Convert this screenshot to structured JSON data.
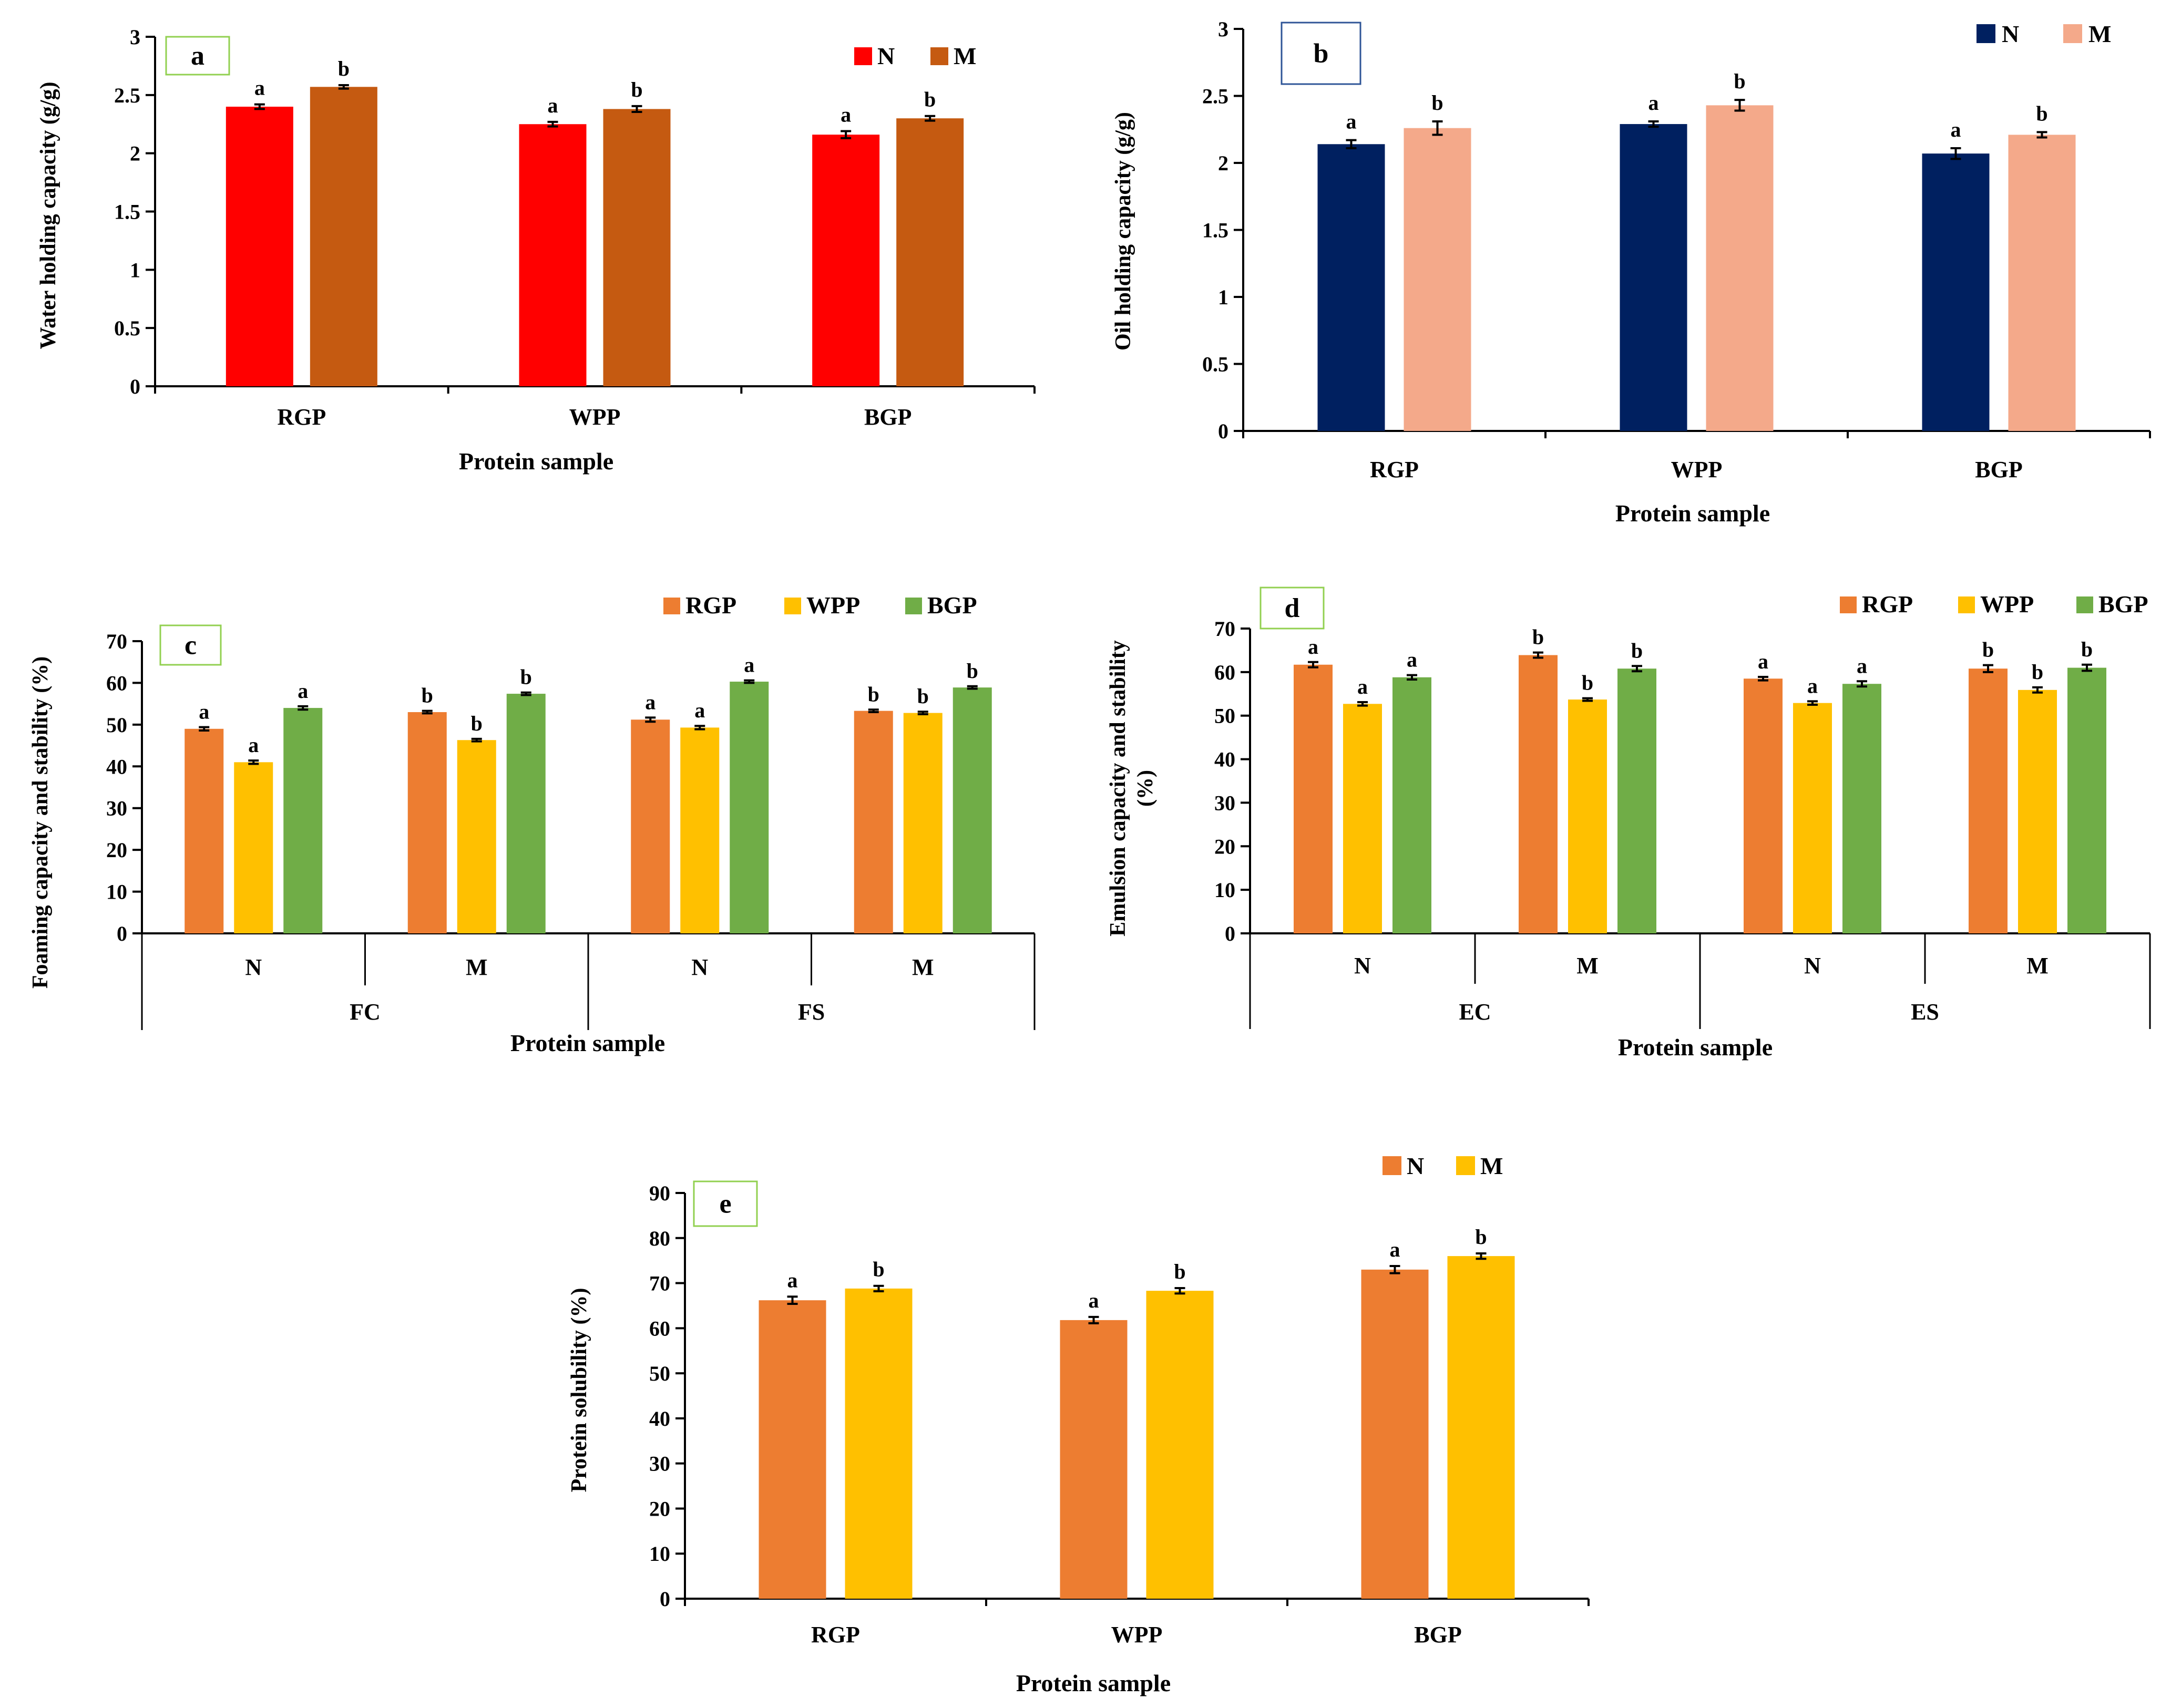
{
  "chart_data": [
    {
      "type": "bar",
      "panel_label": "a",
      "title": "",
      "xlabel": "Protein sample",
      "ylabel": "Water holding capacity (g/g)",
      "ylim": [
        0,
        3
      ],
      "yticks": [
        "0",
        "0.5",
        "1",
        "1.5",
        "2",
        "2.5",
        "3"
      ],
      "categories": [
        "RGP",
        "WPP",
        "BGP"
      ],
      "legend_position": "top-right",
      "grid": false,
      "series": [
        {
          "name": "N",
          "color": "#ff0000",
          "values": [
            2.4,
            2.25,
            2.16
          ],
          "errors": [
            0.02,
            0.02,
            0.03
          ],
          "letters": [
            "a",
            "a",
            "a"
          ]
        },
        {
          "name": "M",
          "color": "#c55a11",
          "values": [
            2.57,
            2.38,
            2.3
          ],
          "errors": [
            0.015,
            0.025,
            0.02
          ],
          "letters": [
            "b",
            "b",
            "b"
          ]
        }
      ]
    },
    {
      "type": "bar",
      "panel_label": "b",
      "title": "",
      "xlabel": "Protein sample",
      "ylabel": "Oil holding capacity (g/g)",
      "ylim": [
        0,
        3
      ],
      "yticks": [
        "0",
        "0.5",
        "1",
        "1.5",
        "2",
        "2.5",
        "3"
      ],
      "categories": [
        "RGP",
        "WPP",
        "BGP"
      ],
      "legend_position": "top-right",
      "grid": false,
      "series": [
        {
          "name": "N",
          "color": "#002060",
          "values": [
            2.14,
            2.29,
            2.07
          ],
          "errors": [
            0.03,
            0.02,
            0.04
          ],
          "letters": [
            "a",
            "a",
            "a"
          ]
        },
        {
          "name": "M",
          "color": "#f4a98a",
          "values": [
            2.26,
            2.43,
            2.21
          ],
          "errors": [
            0.05,
            0.04,
            0.02
          ],
          "letters": [
            "b",
            "b",
            "b"
          ]
        }
      ]
    },
    {
      "type": "bar",
      "panel_label": "c",
      "title": "",
      "xlabel": "Protein sample",
      "ylabel": "Foaming capacity and stability (%)",
      "ylim": [
        0,
        70
      ],
      "yticks": [
        "0",
        "10",
        "20",
        "30",
        "40",
        "50",
        "60",
        "70"
      ],
      "categories": [
        "N",
        "M",
        "N",
        "M"
      ],
      "groups": [
        {
          "label": "FC",
          "span": 2
        },
        {
          "label": "FS",
          "span": 2
        }
      ],
      "legend_position": "top-right",
      "grid": false,
      "series": [
        {
          "name": "RGP",
          "color": "#ed7d31",
          "values": [
            49,
            53,
            51.2,
            53.3
          ],
          "errors": [
            0.4,
            0.3,
            0.5,
            0.3
          ],
          "letters": [
            "a",
            "b",
            "a",
            "b"
          ]
        },
        {
          "name": "WPP",
          "color": "#ffc000",
          "values": [
            41,
            46.3,
            49.3,
            52.8
          ],
          "errors": [
            0.4,
            0.3,
            0.4,
            0.3
          ],
          "letters": [
            "a",
            "b",
            "a",
            "b"
          ]
        },
        {
          "name": "BGP",
          "color": "#70ad47",
          "values": [
            54,
            57.4,
            60.3,
            58.9
          ],
          "errors": [
            0.4,
            0.3,
            0.3,
            0.3
          ],
          "letters": [
            "a",
            "b",
            "a",
            "b"
          ]
        }
      ]
    },
    {
      "type": "bar",
      "panel_label": "d",
      "title": "",
      "xlabel": "Protein sample",
      "ylabel": "Emulsion capacity and stability (%)",
      "ylim": [
        0,
        70
      ],
      "yticks": [
        "0",
        "10",
        "20",
        "30",
        "40",
        "50",
        "60",
        "70"
      ],
      "categories": [
        "N",
        "M",
        "N",
        "M"
      ],
      "groups": [
        {
          "label": "EC",
          "span": 2
        },
        {
          "label": "ES",
          "span": 2
        }
      ],
      "legend_position": "top-right",
      "grid": false,
      "series": [
        {
          "name": "RGP",
          "color": "#ed7d31",
          "values": [
            61.7,
            63.9,
            58.5,
            60.8
          ],
          "errors": [
            0.6,
            0.6,
            0.4,
            0.8
          ],
          "letters": [
            "a",
            "b",
            "a",
            "b"
          ]
        },
        {
          "name": "WPP",
          "color": "#ffc000",
          "values": [
            52.7,
            53.7,
            52.9,
            55.9
          ],
          "errors": [
            0.4,
            0.3,
            0.4,
            0.6
          ],
          "letters": [
            "a",
            "b",
            "a",
            "b"
          ]
        },
        {
          "name": "BGP",
          "color": "#70ad47",
          "values": [
            58.8,
            60.8,
            57.3,
            61
          ],
          "errors": [
            0.5,
            0.6,
            0.6,
            0.7
          ],
          "letters": [
            "a",
            "b",
            "a",
            "b"
          ]
        }
      ]
    },
    {
      "type": "bar",
      "panel_label": "e",
      "title": "",
      "xlabel": "Protein sample",
      "ylabel": "Protein solubility (%)",
      "ylim": [
        0,
        90
      ],
      "yticks": [
        "0",
        "10",
        "20",
        "30",
        "40",
        "50",
        "60",
        "70",
        "80",
        "90"
      ],
      "categories": [
        "RGP",
        "WPP",
        "BGP"
      ],
      "legend_position": "top-right",
      "grid": false,
      "series": [
        {
          "name": "N",
          "color": "#ed7d31",
          "values": [
            66.2,
            61.8,
            73
          ],
          "errors": [
            0.8,
            0.7,
            0.8
          ],
          "letters": [
            "a",
            "a",
            "a"
          ]
        },
        {
          "name": "M",
          "color": "#ffc000",
          "values": [
            68.8,
            68.3,
            76
          ],
          "errors": [
            0.6,
            0.6,
            0.6
          ],
          "letters": [
            "b",
            "b",
            "b"
          ]
        }
      ]
    }
  ]
}
